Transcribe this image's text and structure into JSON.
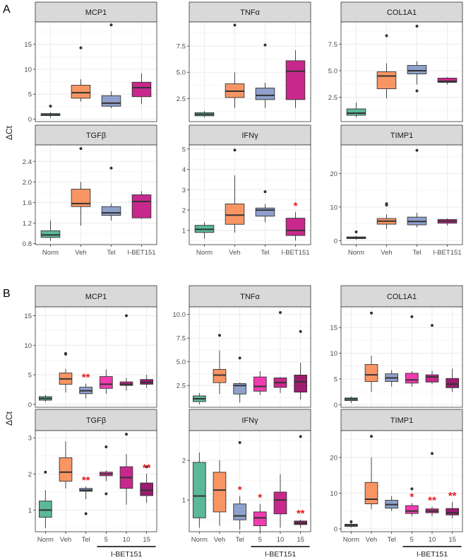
{
  "figure": {
    "panel_labels": [
      "A",
      "B"
    ],
    "y_axis_label": "ΔCt",
    "treatment_label": "I-BET151"
  },
  "colors": {
    "Norm": "#5bb89a",
    "Veh": "#f89563",
    "Tel": "#8fa0cc",
    "I-BET151": "#c8288c",
    "5": "#f03cb0",
    "10": "#c8288c",
    "15": "#9c1c70",
    "strip": "#d9d9d9",
    "panel_bg": "#ffffff",
    "grid": "#ebebeb",
    "sig": "#e41a1c"
  },
  "chart_data": [
    {
      "type": "box",
      "panel": "A",
      "title": "MCP1",
      "categories": [
        "Norm",
        "Veh",
        "Tel",
        "I-BET151"
      ],
      "ylim": [
        -0.5,
        19.5
      ],
      "yticks": [
        0,
        5,
        10,
        15
      ],
      "boxes": [
        {
          "low": 0.3,
          "q1": 0.7,
          "median": 0.95,
          "q3": 1.1,
          "high": 1.4,
          "outliers": [
            2.6
          ]
        },
        {
          "low": 3.5,
          "q1": 4.2,
          "median": 5.3,
          "q3": 6.8,
          "high": 8.0,
          "outliers": [
            14.3
          ]
        },
        {
          "low": 2.2,
          "q1": 2.6,
          "median": 3.2,
          "q3": 4.7,
          "high": 5.6,
          "outliers": [
            18.9
          ]
        },
        {
          "low": 3.0,
          "q1": 4.5,
          "median": 6.3,
          "q3": 7.4,
          "high": 9.2,
          "outliers": []
        }
      ],
      "significance": [
        "",
        "",
        "",
        ""
      ]
    },
    {
      "type": "box",
      "panel": "A",
      "title": "TNFα",
      "categories": [
        "Norm",
        "Veh",
        "Tel",
        "I-BET151"
      ],
      "ylim": [
        0.3,
        9.8
      ],
      "yticks": [
        2.5,
        5.0,
        7.5
      ],
      "boxes": [
        {
          "low": 0.7,
          "q1": 0.85,
          "median": 1.0,
          "q3": 1.15,
          "high": 1.3,
          "outliers": []
        },
        {
          "low": 1.6,
          "q1": 2.6,
          "median": 3.2,
          "q3": 3.9,
          "high": 5.0,
          "outliers": [
            9.5
          ]
        },
        {
          "low": 1.6,
          "q1": 2.4,
          "median": 2.8,
          "q3": 3.5,
          "high": 4.0,
          "outliers": [
            7.6
          ]
        },
        {
          "low": 1.6,
          "q1": 2.4,
          "median": 5.1,
          "q3": 6.1,
          "high": 7.1,
          "outliers": []
        }
      ],
      "significance": [
        "",
        "",
        "",
        ""
      ]
    },
    {
      "type": "box",
      "panel": "A",
      "title": "COL1A1",
      "categories": [
        "Norm",
        "Veh",
        "Tel",
        "I-BET151"
      ],
      "ylim": [
        0.2,
        9.6
      ],
      "yticks": [
        2.5,
        5.0,
        7.5
      ],
      "boxes": [
        {
          "low": 0.6,
          "q1": 0.8,
          "median": 1.0,
          "q3": 1.4,
          "high": 2.0,
          "outliers": []
        },
        {
          "low": 2.4,
          "q1": 3.3,
          "median": 4.5,
          "q3": 4.9,
          "high": 5.7,
          "outliers": [
            8.3
          ]
        },
        {
          "low": 3.7,
          "q1": 4.7,
          "median": 5.0,
          "q3": 5.5,
          "high": 5.9,
          "outliers": [
            9.2,
            3.1
          ]
        },
        {
          "low": 3.7,
          "q1": 3.9,
          "median": 4.0,
          "q3": 4.3,
          "high": 4.4,
          "outliers": []
        }
      ],
      "significance": [
        "",
        "",
        "",
        ""
      ]
    },
    {
      "type": "box",
      "panel": "A",
      "title": "TGFβ",
      "categories": [
        "Norm",
        "Veh",
        "Tel",
        "I-BET151"
      ],
      "ylim": [
        0.78,
        2.72
      ],
      "yticks": [
        0.8,
        1.2,
        1.6,
        2.0,
        2.4
      ],
      "boxes": [
        {
          "low": 0.85,
          "q1": 0.92,
          "median": 0.97,
          "q3": 1.05,
          "high": 1.25,
          "outliers": []
        },
        {
          "low": 1.15,
          "q1": 1.52,
          "median": 1.58,
          "q3": 1.86,
          "high": 2.0,
          "outliers": [
            2.65
          ]
        },
        {
          "low": 1.25,
          "q1": 1.35,
          "median": 1.4,
          "q3": 1.52,
          "high": 1.58,
          "outliers": [
            2.27
          ]
        },
        {
          "low": 1.28,
          "q1": 1.3,
          "median": 1.62,
          "q3": 1.75,
          "high": 1.82,
          "outliers": []
        }
      ],
      "significance": [
        "",
        "",
        "",
        ""
      ]
    },
    {
      "type": "box",
      "panel": "A",
      "title": "IFNγ",
      "categories": [
        "Norm",
        "Veh",
        "Tel",
        "I-BET151"
      ],
      "ylim": [
        0.3,
        5.2
      ],
      "yticks": [
        1,
        2,
        3,
        4,
        5
      ],
      "boxes": [
        {
          "low": 0.6,
          "q1": 0.9,
          "median": 1.05,
          "q3": 1.25,
          "high": 1.4,
          "outliers": []
        },
        {
          "low": 0.9,
          "q1": 1.3,
          "median": 1.75,
          "q3": 2.3,
          "high": 3.7,
          "outliers": [
            4.95
          ]
        },
        {
          "low": 1.4,
          "q1": 1.7,
          "median": 2.0,
          "q3": 2.1,
          "high": 2.3,
          "outliers": [
            2.9
          ]
        },
        {
          "low": 0.5,
          "q1": 0.75,
          "median": 1.0,
          "q3": 1.6,
          "high": 1.9,
          "outliers": []
        }
      ],
      "significance": [
        "",
        "",
        "",
        "*"
      ]
    },
    {
      "type": "box",
      "panel": "A",
      "title": "TIMP1",
      "categories": [
        "Norm",
        "Veh",
        "Tel",
        "I-BET151"
      ],
      "ylim": [
        -1.2,
        28.5
      ],
      "yticks": [
        0,
        10,
        20
      ],
      "boxes": [
        {
          "low": 0.3,
          "q1": 0.6,
          "median": 0.9,
          "q3": 1.1,
          "high": 1.4,
          "outliers": [
            2.6
          ]
        },
        {
          "low": 3.5,
          "q1": 4.9,
          "median": 5.8,
          "q3": 6.6,
          "high": 7.8,
          "outliers": [
            10.6,
            11.0
          ]
        },
        {
          "low": 4.0,
          "q1": 4.7,
          "median": 5.7,
          "q3": 7.0,
          "high": 8.3,
          "outliers": [
            26.9
          ]
        },
        {
          "low": 4.5,
          "q1": 5.2,
          "median": 5.8,
          "q3": 6.3,
          "high": 6.6,
          "outliers": []
        }
      ],
      "significance": [
        "",
        "",
        "",
        ""
      ]
    },
    {
      "type": "box",
      "panel": "B",
      "title": "MCP1",
      "categories": [
        "Norm",
        "Veh",
        "Tel",
        "5",
        "10",
        "15"
      ],
      "ylim": [
        -0.5,
        16.5
      ],
      "yticks": [
        0,
        5,
        10,
        15
      ],
      "boxes": [
        {
          "low": 0.4,
          "q1": 0.7,
          "median": 1.0,
          "q3": 1.3,
          "high": 1.6,
          "outliers": []
        },
        {
          "low": 2.0,
          "q1": 3.4,
          "median": 4.3,
          "q3": 5.3,
          "high": 6.0,
          "outliers": [
            8.5,
            8.6
          ]
        },
        {
          "low": 1.0,
          "q1": 1.8,
          "median": 2.3,
          "q3": 2.9,
          "high": 3.5,
          "outliers": []
        },
        {
          "low": 1.8,
          "q1": 2.7,
          "median": 3.4,
          "q3": 4.7,
          "high": 5.9,
          "outliers": []
        },
        {
          "low": 2.3,
          "q1": 3.2,
          "median": 3.4,
          "q3": 3.8,
          "high": 4.5,
          "outliers": [
            15.0
          ]
        },
        {
          "low": 2.8,
          "q1": 3.4,
          "median": 3.7,
          "q3": 4.2,
          "high": 5.0,
          "outliers": []
        }
      ],
      "significance": [
        "",
        "",
        "**",
        "",
        "",
        ""
      ]
    },
    {
      "type": "box",
      "panel": "B",
      "title": "TNFα",
      "categories": [
        "Norm",
        "Veh",
        "Tel",
        "5",
        "10",
        "15"
      ],
      "ylim": [
        0.2,
        10.8
      ],
      "yticks": [
        2.5,
        5.0,
        7.5,
        10.0
      ],
      "boxes": [
        {
          "low": 0.5,
          "q1": 0.8,
          "median": 1.1,
          "q3": 1.4,
          "high": 1.7,
          "outliers": []
        },
        {
          "low": 1.6,
          "q1": 2.8,
          "median": 3.6,
          "q3": 4.2,
          "high": 6.2,
          "outliers": [
            7.8
          ]
        },
        {
          "low": 0.7,
          "q1": 1.6,
          "median": 2.5,
          "q3": 2.7,
          "high": 2.8,
          "outliers": [
            5.4
          ]
        },
        {
          "low": 1.5,
          "q1": 1.9,
          "median": 2.4,
          "q3": 3.4,
          "high": 4.0,
          "outliers": []
        },
        {
          "low": 1.7,
          "q1": 2.3,
          "median": 2.8,
          "q3": 3.3,
          "high": 3.4,
          "outliers": [
            10.2
          ]
        },
        {
          "low": 1.0,
          "q1": 1.8,
          "median": 2.9,
          "q3": 3.6,
          "high": 4.9,
          "outliers": [
            8.2
          ]
        }
      ],
      "significance": [
        "",
        "",
        "",
        "",
        "",
        ""
      ]
    },
    {
      "type": "box",
      "panel": "B",
      "title": "COL1A1",
      "categories": [
        "Norm",
        "Veh",
        "Tel",
        "5",
        "10",
        "15"
      ],
      "ylim": [
        -0.5,
        19.0
      ],
      "yticks": [
        0,
        5,
        10,
        15
      ],
      "boxes": [
        {
          "low": 0.3,
          "q1": 0.8,
          "median": 1.1,
          "q3": 1.3,
          "high": 1.6,
          "outliers": []
        },
        {
          "low": 2.5,
          "q1": 4.5,
          "median": 5.8,
          "q3": 7.8,
          "high": 9.5,
          "outliers": [
            17.8
          ]
        },
        {
          "low": 3.5,
          "q1": 4.5,
          "median": 5.2,
          "q3": 6.0,
          "high": 6.7,
          "outliers": []
        },
        {
          "low": 3.5,
          "q1": 4.2,
          "median": 4.8,
          "q3": 6.1,
          "high": 6.5,
          "outliers": [
            17.1
          ]
        },
        {
          "low": 4.0,
          "q1": 4.4,
          "median": 5.4,
          "q3": 5.8,
          "high": 6.6,
          "outliers": [
            15.4
          ]
        },
        {
          "low": 2.5,
          "q1": 3.3,
          "median": 4.0,
          "q3": 5.1,
          "high": 7.0,
          "outliers": []
        }
      ],
      "significance": [
        "",
        "",
        "",
        "",
        "",
        ""
      ]
    },
    {
      "type": "box",
      "panel": "B",
      "title": "TGFβ",
      "categories": [
        "Norm",
        "Veh",
        "Tel",
        "5",
        "10",
        "15"
      ],
      "ylim": [
        0.4,
        3.2
      ],
      "yticks": [
        1,
        2,
        3
      ],
      "boxes": [
        {
          "low": 0.5,
          "q1": 0.8,
          "median": 1.0,
          "q3": 1.25,
          "high": 1.55,
          "outliers": [
            2.05
          ]
        },
        {
          "low": 1.6,
          "q1": 1.8,
          "median": 2.05,
          "q3": 2.45,
          "high": 2.9,
          "outliers": []
        },
        {
          "low": 1.3,
          "q1": 1.52,
          "median": 1.55,
          "q3": 1.6,
          "high": 1.65,
          "outliers": [
            0.9
          ]
        },
        {
          "low": 1.8,
          "q1": 1.95,
          "median": 2.0,
          "q3": 2.05,
          "high": 2.1,
          "outliers": [
            2.75,
            1.45
          ]
        },
        {
          "low": 1.15,
          "q1": 1.6,
          "median": 1.9,
          "q3": 2.2,
          "high": 2.55,
          "outliers": [
            3.1
          ]
        },
        {
          "low": 1.2,
          "q1": 1.4,
          "median": 1.55,
          "q3": 1.75,
          "high": 2.0,
          "outliers": [
            2.2
          ]
        }
      ],
      "significance": [
        "",
        "",
        "**",
        "",
        "",
        "**"
      ]
    },
    {
      "type": "box",
      "panel": "B",
      "title": "IFNγ",
      "categories": [
        "Norm",
        "Veh",
        "Tel",
        "5",
        "10",
        "15"
      ],
      "ylim": [
        0.2,
        2.75
      ],
      "yticks": [
        1,
        2
      ],
      "boxes": [
        {
          "low": 0.3,
          "q1": 0.55,
          "median": 1.1,
          "q3": 1.95,
          "high": 2.2,
          "outliers": []
        },
        {
          "low": 0.35,
          "q1": 0.7,
          "median": 1.25,
          "q3": 1.7,
          "high": 2.0,
          "outliers": []
        },
        {
          "low": 0.25,
          "q1": 0.5,
          "median": 0.6,
          "q3": 0.9,
          "high": 1.1,
          "outliers": [
            2.45
          ]
        },
        {
          "low": 0.2,
          "q1": 0.35,
          "median": 0.55,
          "q3": 0.7,
          "high": 0.9,
          "outliers": []
        },
        {
          "low": 0.3,
          "q1": 0.65,
          "median": 1.0,
          "q3": 1.2,
          "high": 1.65,
          "outliers": []
        },
        {
          "low": 0.3,
          "q1": 0.38,
          "median": 0.42,
          "q3": 0.47,
          "high": 0.5,
          "outliers": [
            2.6
          ]
        }
      ],
      "significance": [
        "",
        "",
        "*",
        "*",
        "",
        "**"
      ]
    },
    {
      "type": "box",
      "panel": "B",
      "title": "TIMP1",
      "categories": [
        "Norm",
        "Veh",
        "Tel",
        "5",
        "10",
        "15"
      ],
      "ylim": [
        -0.8,
        27.5
      ],
      "yticks": [
        0,
        10,
        20
      ],
      "boxes": [
        {
          "low": 0.4,
          "q1": 0.7,
          "median": 1.0,
          "q3": 1.3,
          "high": 1.6,
          "outliers": [
            2.0
          ]
        },
        {
          "low": 5.5,
          "q1": 7.0,
          "median": 8.3,
          "q3": 13.0,
          "high": 20.0,
          "outliers": [
            25.9
          ]
        },
        {
          "low": 5.0,
          "q1": 5.8,
          "median": 6.8,
          "q3": 8.0,
          "high": 9.2,
          "outliers": []
        },
        {
          "low": 3.5,
          "q1": 4.3,
          "median": 5.0,
          "q3": 6.5,
          "high": 7.2,
          "outliers": [
            11.2
          ]
        },
        {
          "low": 3.5,
          "q1": 4.5,
          "median": 5.0,
          "q3": 5.6,
          "high": 6.2,
          "outliers": [
            21.1
          ]
        },
        {
          "low": 3.0,
          "q1": 3.9,
          "median": 4.5,
          "q3": 5.7,
          "high": 7.5,
          "outliers": []
        }
      ],
      "significance": [
        "",
        "",
        "",
        "*",
        "**",
        "**"
      ]
    }
  ]
}
